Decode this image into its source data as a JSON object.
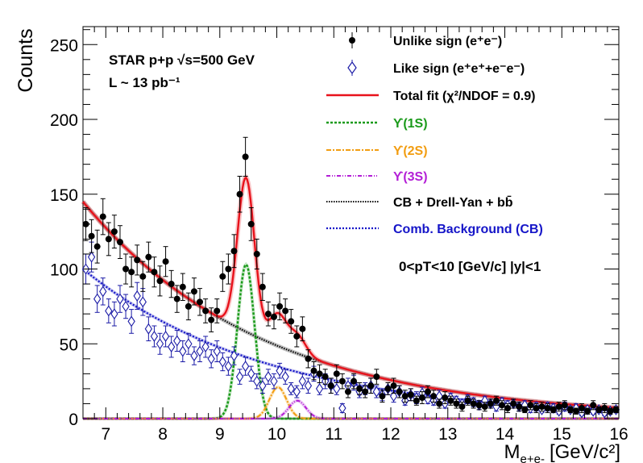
{
  "chart_data": {
    "type": "scatter",
    "xlim": [
      6.6,
      16
    ],
    "ylim": [
      0,
      262
    ],
    "x_ticks": [
      7,
      8,
      9,
      10,
      11,
      12,
      13,
      14,
      15,
      16
    ],
    "y_ticks": [
      0,
      50,
      100,
      150,
      200,
      250
    ],
    "xlabel": "M",
    "xlabel_sub": "e+e-",
    "xlabel_unit": "[GeV/c²]",
    "ylabel": "Counts",
    "annotation_line1": "STAR p+p   √s=500 GeV",
    "annotation_line2": "L ~ 13 pb⁻¹",
    "kin_label": "0<pT<10 [GeV/c]   |y|<1",
    "legend": [
      {
        "key": "unlike",
        "label": "Unlike sign (e⁺e⁻)",
        "color": "#000000"
      },
      {
        "key": "like",
        "label": "Like sign (e⁺e⁺+e⁻e⁻)",
        "color": "#1a1aa6"
      },
      {
        "key": "total",
        "label": "Total fit (χ²/NDOF = 0.9)",
        "color": "#e8121b"
      },
      {
        "key": "y1s",
        "label": "ϒ(1S)",
        "color": "#1a9a1a"
      },
      {
        "key": "y2s",
        "label": "ϒ(2S)",
        "color": "#f29d11"
      },
      {
        "key": "y3s",
        "label": "ϒ(3S)",
        "color": "#b31ed6"
      },
      {
        "key": "cbdy",
        "label": "CB + Drell-Yan + bb̄",
        "color": "#000000"
      },
      {
        "key": "comb",
        "label": "Comb. Background (CB)",
        "color": "#1515c8"
      }
    ],
    "series": [
      {
        "name": "Unlike sign (e⁺e⁻)",
        "x": [
          6.65,
          6.75,
          6.85,
          6.95,
          7.05,
          7.15,
          7.25,
          7.35,
          7.45,
          7.55,
          7.65,
          7.75,
          7.85,
          7.95,
          8.05,
          8.15,
          8.25,
          8.35,
          8.45,
          8.55,
          8.65,
          8.75,
          8.85,
          8.95,
          9.05,
          9.15,
          9.25,
          9.35,
          9.45,
          9.55,
          9.65,
          9.75,
          9.85,
          9.95,
          10.05,
          10.15,
          10.25,
          10.35,
          10.45,
          10.55,
          10.65,
          10.75,
          10.85,
          10.95,
          11.05,
          11.15,
          11.25,
          11.35,
          11.45,
          11.55,
          11.65,
          11.75,
          11.85,
          11.95,
          12.05,
          12.15,
          12.25,
          12.35,
          12.45,
          12.55,
          12.65,
          12.75,
          12.85,
          12.95,
          13.05,
          13.15,
          13.25,
          13.35,
          13.45,
          13.55,
          13.65,
          13.75,
          13.85,
          13.95,
          14.05,
          14.15,
          14.25,
          14.35,
          14.45,
          14.55,
          14.65,
          14.75,
          14.85,
          14.95,
          15.05,
          15.15,
          15.25,
          15.35,
          15.45,
          15.55,
          15.65,
          15.75,
          15.85,
          15.95
        ],
        "y": [
          130,
          122,
          115,
          135,
          120,
          125,
          118,
          100,
          98,
          106,
          95,
          108,
          98,
          92,
          105,
          90,
          80,
          88,
          75,
          85,
          78,
          72,
          66,
          72,
          95,
          100,
          112,
          150,
          175,
          130,
          110,
          88,
          70,
          68,
          75,
          72,
          65,
          55,
          60,
          40,
          32,
          30,
          28,
          22,
          30,
          25,
          18,
          25,
          20,
          18,
          22,
          28,
          15,
          20,
          22,
          18,
          15,
          16,
          12,
          14,
          18,
          15,
          10,
          14,
          12,
          10,
          8,
          12,
          10,
          9,
          8,
          10,
          12,
          9,
          7,
          10,
          8,
          6,
          9,
          7,
          8,
          7,
          6,
          8,
          9,
          6,
          5,
          7,
          5,
          9,
          6,
          7,
          5,
          6
        ],
        "yerr": [
          11,
          11,
          11,
          12,
          11,
          11,
          11,
          10,
          10,
          10,
          10,
          10,
          10,
          10,
          10,
          9,
          9,
          9,
          9,
          9,
          9,
          8,
          8,
          8,
          10,
          10,
          11,
          12,
          13,
          11,
          10,
          9,
          8,
          8,
          9,
          8,
          8,
          7,
          8,
          6,
          6,
          6,
          5,
          5,
          6,
          5,
          4,
          5,
          4,
          4,
          5,
          5,
          4,
          4,
          5,
          4,
          4,
          4,
          3,
          4,
          4,
          4,
          3,
          4,
          3,
          3,
          3,
          3,
          3,
          3,
          3,
          3,
          3,
          3,
          3,
          3,
          3,
          2,
          3,
          3,
          3,
          3,
          2,
          3,
          3,
          2,
          2,
          3,
          2,
          3,
          2,
          3,
          2,
          2
        ]
      },
      {
        "name": "Like sign (e⁺e⁺+e⁻e⁻)",
        "x": [
          6.65,
          6.75,
          6.85,
          6.95,
          7.05,
          7.15,
          7.25,
          7.35,
          7.45,
          7.55,
          7.65,
          7.75,
          7.85,
          7.95,
          8.05,
          8.15,
          8.25,
          8.35,
          8.45,
          8.55,
          8.65,
          8.75,
          8.85,
          8.95,
          9.05,
          9.15,
          9.25,
          9.35,
          9.45,
          9.55,
          9.65,
          9.75,
          9.85,
          9.95,
          10.05,
          10.15,
          10.25,
          10.35,
          10.45,
          10.55,
          10.65,
          10.75,
          10.85,
          10.95,
          11.05,
          11.15,
          11.25,
          11.35,
          11.45,
          11.55,
          11.65,
          11.75,
          11.85,
          11.95,
          12.05,
          12.15,
          12.25,
          12.35,
          12.45,
          12.55,
          12.65,
          12.75,
          12.85,
          12.95,
          13.05,
          13.15,
          13.25,
          13.35,
          13.45,
          13.55,
          13.65,
          13.75,
          13.85,
          13.95,
          14.05,
          14.15,
          14.25,
          14.35,
          14.45,
          14.55,
          14.65,
          14.75,
          14.85,
          14.95,
          15.05,
          15.15,
          15.25,
          15.35,
          15.45,
          15.55,
          15.65,
          15.75,
          15.85,
          15.95
        ],
        "y": [
          100,
          108,
          80,
          85,
          72,
          70,
          80,
          75,
          65,
          82,
          78,
          60,
          55,
          50,
          55,
          48,
          52,
          45,
          50,
          42,
          45,
          48,
          40,
          45,
          38,
          35,
          42,
          28,
          35,
          30,
          25,
          22,
          28,
          25,
          32,
          28,
          20,
          18,
          25,
          22,
          30,
          20,
          25,
          22,
          20,
          7,
          22,
          24,
          18,
          20,
          22,
          18,
          16,
          20,
          15,
          18,
          12,
          16,
          14,
          17,
          13,
          12,
          15,
          10,
          14,
          12,
          10,
          13,
          11,
          9,
          12,
          10,
          8,
          11,
          9,
          10,
          8,
          9,
          7,
          8,
          6,
          8,
          7,
          5,
          8,
          6,
          7,
          4,
          6,
          5,
          6,
          4,
          5,
          6
        ],
        "yerr": [
          10,
          10,
          9,
          9,
          8,
          8,
          9,
          8,
          8,
          9,
          9,
          8,
          7,
          7,
          7,
          7,
          7,
          7,
          7,
          6,
          7,
          7,
          6,
          7,
          6,
          6,
          6,
          5,
          6,
          5,
          5,
          5,
          5,
          5,
          5,
          5,
          4,
          4,
          5,
          5,
          5,
          4,
          5,
          5,
          4,
          3,
          5,
          5,
          4,
          4,
          5,
          4,
          4,
          4,
          4,
          4,
          3,
          4,
          4,
          4,
          3,
          3,
          4,
          3,
          3,
          3,
          3,
          3,
          3,
          3,
          3,
          3,
          3,
          3,
          3,
          3,
          3,
          3,
          3,
          3,
          2,
          3,
          3,
          2,
          3,
          2,
          3,
          2,
          2,
          2,
          2,
          2,
          2,
          2
        ]
      }
    ],
    "fit_model": {
      "comb_background": {
        "a": 100,
        "b": -0.31,
        "x0": 6.6
      },
      "cb_dy_bb": {
        "a": 145,
        "b": -0.32,
        "x0": 6.6
      },
      "upsilon_1s": {
        "amp": 103,
        "mean": 9.46,
        "sigma": 0.15
      },
      "upsilon_2s": {
        "amp": 21,
        "mean": 10.02,
        "sigma": 0.15
      },
      "upsilon_3s": {
        "amp": 12,
        "mean": 10.36,
        "sigma": 0.15
      }
    }
  }
}
